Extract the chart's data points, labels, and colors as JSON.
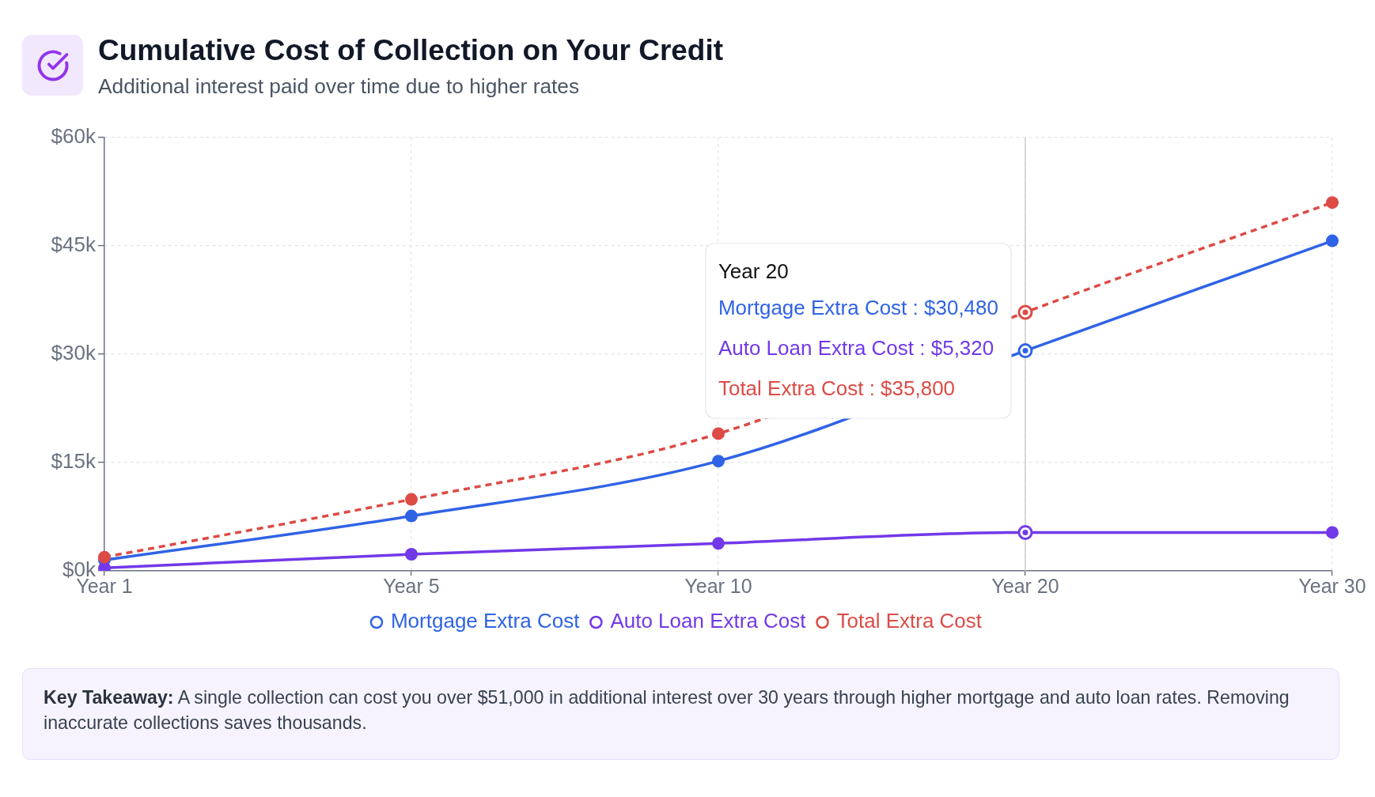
{
  "chart_data": {
    "type": "line",
    "title": "Cumulative Cost of Collection on Your Credit",
    "subtitle": "Additional interest paid over time due to higher rates",
    "categories": [
      "Year 1",
      "Year 5",
      "Year 10",
      "Year 20",
      "Year 30"
    ],
    "series": [
      {
        "name": "Mortgage Extra Cost",
        "color": "#2f63e6",
        "values": [
          1500,
          7600,
          15200,
          30480,
          45700
        ]
      },
      {
        "name": "Auto Loan Extra Cost",
        "color": "#7239e8",
        "values": [
          400,
          2300,
          3800,
          5320,
          5320
        ]
      },
      {
        "name": "Total Extra Cost",
        "color": "#dd4b45",
        "values": [
          1900,
          9900,
          19000,
          35800,
          51000
        ],
        "line_style": "dashed"
      }
    ],
    "ylim": [
      0,
      60000
    ],
    "yticks": [
      {
        "value": 0,
        "label": "$0k"
      },
      {
        "value": 15000,
        "label": "$15k"
      },
      {
        "value": 30000,
        "label": "$30k"
      },
      {
        "value": 45000,
        "label": "$45k"
      },
      {
        "value": 60000,
        "label": "$60k"
      }
    ],
    "grid": true,
    "legend": "bottom",
    "marker": "circle",
    "line_style": "solid",
    "ref_lines": [
      {
        "axis": "x",
        "value": "Year 20",
        "color": "#cccccc"
      }
    ],
    "annotations": [
      "Year 20",
      "Mortgage Extra Cost : $30,480",
      "Auto Loan Extra Cost : $5,320",
      "Total Extra Cost : $35,800",
      "Key Takeaway: A single collection can cost you over $51,000 in additional interest over 30 years through higher mortgage and auto loan rates. Removing inaccurate collections saves thousands."
    ]
  }
}
